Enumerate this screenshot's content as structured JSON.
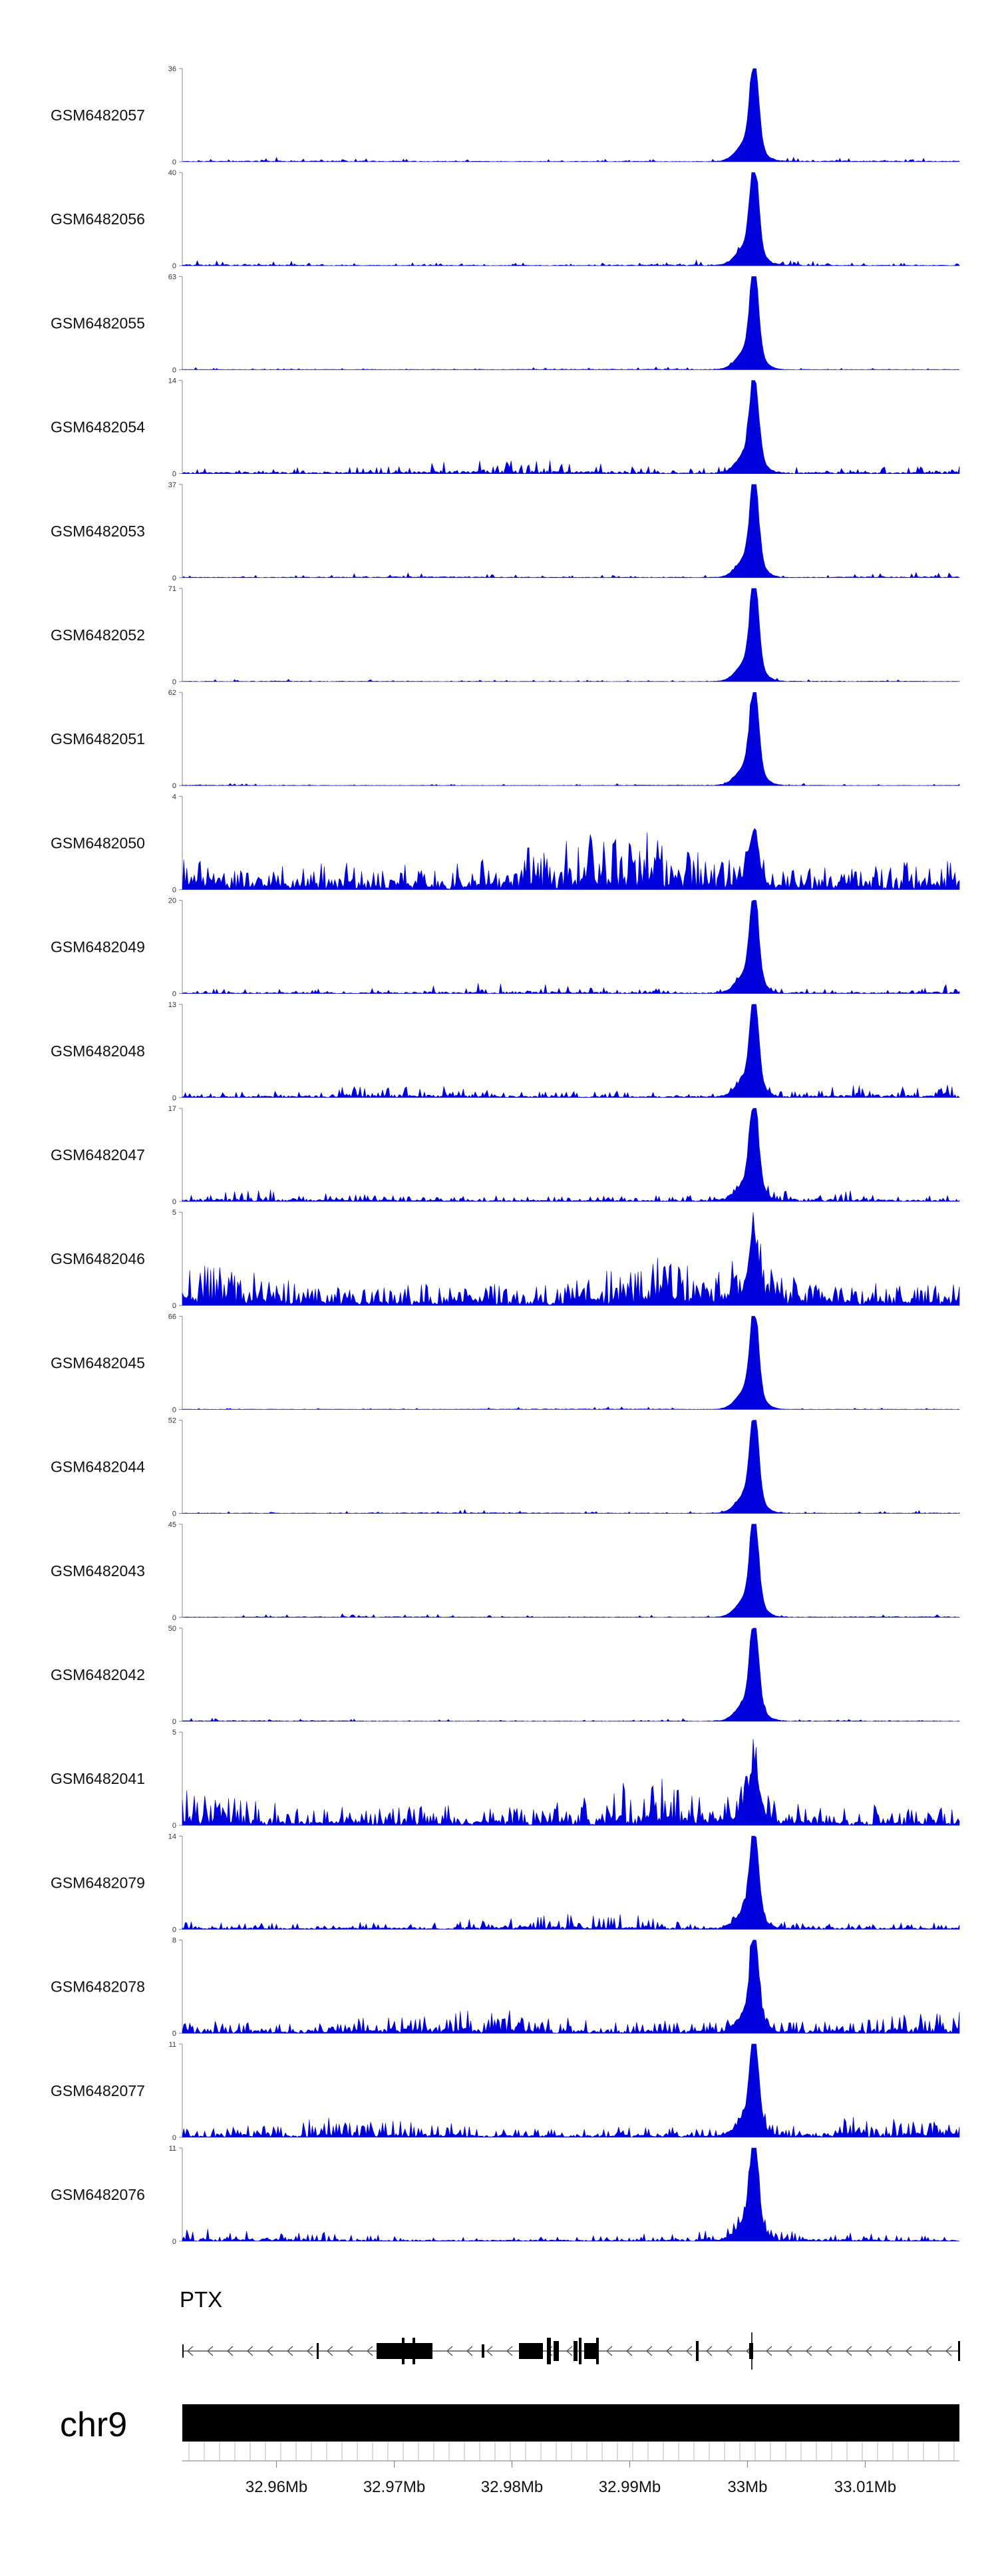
{
  "chart_data": {
    "type": "area",
    "series_color": "#0000dd",
    "tracks": [
      {
        "name": "GSM6482057",
        "ymax": "36",
        "max": 36,
        "noise": 0.05,
        "activity": 0.13,
        "peak": 1.0
      },
      {
        "name": "GSM6482056",
        "ymax": "40",
        "max": 40,
        "noise": 0.06,
        "activity": 0.18,
        "peak": 1.0
      },
      {
        "name": "GSM6482055",
        "ymax": "63",
        "max": 63,
        "noise": 0.03,
        "activity": 0.1,
        "peak": 1.0
      },
      {
        "name": "GSM6482054",
        "ymax": "14",
        "max": 14,
        "noise": 0.14,
        "activity": 0.32,
        "peak": 1.0
      },
      {
        "name": "GSM6482053",
        "ymax": "37",
        "max": 37,
        "noise": 0.05,
        "activity": 0.16,
        "peak": 1.0
      },
      {
        "name": "GSM6482052",
        "ymax": "71",
        "max": 71,
        "noise": 0.03,
        "activity": 0.1,
        "peak": 1.0
      },
      {
        "name": "GSM6482051",
        "ymax": "62",
        "max": 62,
        "noise": 0.03,
        "activity": 0.1,
        "peak": 1.0
      },
      {
        "name": "GSM6482050",
        "ymax": "4",
        "max": 4,
        "noise": 0.55,
        "activity": 0.75,
        "peak": 0.55
      },
      {
        "name": "GSM6482049",
        "ymax": "20",
        "max": 20,
        "noise": 0.1,
        "activity": 0.26,
        "peak": 1.0
      },
      {
        "name": "GSM6482048",
        "ymax": "13",
        "max": 13,
        "noise": 0.13,
        "activity": 0.32,
        "peak": 1.0
      },
      {
        "name": "GSM6482047",
        "ymax": "17",
        "max": 17,
        "noise": 0.12,
        "activity": 0.35,
        "peak": 1.0
      },
      {
        "name": "GSM6482046",
        "ymax": "5",
        "max": 5,
        "noise": 0.45,
        "activity": 0.7,
        "peak": 0.6
      },
      {
        "name": "GSM6482045",
        "ymax": "66",
        "max": 66,
        "noise": 0.03,
        "activity": 0.09,
        "peak": 1.0
      },
      {
        "name": "GSM6482044",
        "ymax": "52",
        "max": 52,
        "noise": 0.04,
        "activity": 0.12,
        "peak": 1.0
      },
      {
        "name": "GSM6482043",
        "ymax": "45",
        "max": 45,
        "noise": 0.04,
        "activity": 0.12,
        "peak": 1.0
      },
      {
        "name": "GSM6482042",
        "ymax": "50",
        "max": 50,
        "noise": 0.04,
        "activity": 0.13,
        "peak": 1.0
      },
      {
        "name": "GSM6482041",
        "ymax": "5",
        "max": 5,
        "noise": 0.4,
        "activity": 0.6,
        "peak": 0.6
      },
      {
        "name": "GSM6482079",
        "ymax": "14",
        "max": 14,
        "noise": 0.15,
        "activity": 0.38,
        "peak": 1.0
      },
      {
        "name": "GSM6482078",
        "ymax": "8",
        "max": 8,
        "noise": 0.25,
        "activity": 0.55,
        "peak": 0.95
      },
      {
        "name": "GSM6482077",
        "ymax": "11",
        "max": 11,
        "noise": 0.2,
        "activity": 0.45,
        "peak": 1.0
      },
      {
        "name": "GSM6482076",
        "ymax": "11",
        "max": 11,
        "noise": 0.12,
        "activity": 0.32,
        "peak": 1.0
      }
    ],
    "gene_track": {
      "name": "PTX",
      "strand": "-"
    },
    "chromosome": "chr9",
    "xaxis": {
      "range_mb": [
        32.952,
        33.018
      ],
      "tick_labels": [
        "32.96Mb",
        "32.97Mb",
        "32.98Mb",
        "32.99Mb",
        "33Mb",
        "33.01Mb"
      ],
      "tick_values_mb": [
        32.96,
        32.97,
        32.98,
        32.99,
        33.0,
        33.01
      ]
    }
  }
}
